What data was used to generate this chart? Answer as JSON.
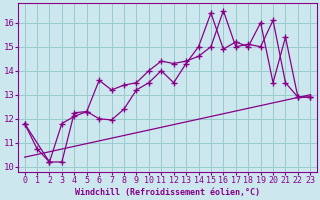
{
  "xlabel": "Windchill (Refroidissement éolien,°C)",
  "bg_color": "#cce8ee",
  "line_color": "#880088",
  "grid_color": "#99cccc",
  "xlim": [
    -0.5,
    23.5
  ],
  "ylim": [
    9.8,
    16.8
  ],
  "yticks": [
    10,
    11,
    12,
    13,
    14,
    15,
    16
  ],
  "xticks": [
    0,
    1,
    2,
    3,
    4,
    5,
    6,
    7,
    8,
    9,
    10,
    11,
    12,
    13,
    14,
    15,
    16,
    17,
    18,
    19,
    20,
    21,
    22,
    23
  ],
  "line1_x": [
    0,
    1,
    2,
    3,
    4,
    5,
    6,
    7,
    8,
    9,
    10,
    11,
    12,
    13,
    14,
    15,
    16,
    17,
    18,
    19,
    20,
    21,
    22,
    23
  ],
  "line1_y": [
    11.8,
    10.75,
    10.2,
    10.2,
    12.25,
    12.3,
    12.0,
    11.95,
    12.4,
    13.2,
    13.5,
    14.0,
    13.5,
    14.3,
    15.0,
    16.4,
    14.9,
    15.2,
    15.0,
    16.0,
    13.5,
    15.4,
    12.9,
    12.9
  ],
  "line2_x": [
    0,
    2,
    3,
    4,
    5,
    6,
    7,
    8,
    9,
    10,
    11,
    12,
    13,
    14,
    15,
    16,
    17,
    18,
    19,
    20,
    21,
    22,
    23
  ],
  "line2_y": [
    11.8,
    10.2,
    11.8,
    12.1,
    12.3,
    13.6,
    13.2,
    13.4,
    13.5,
    14.0,
    14.4,
    14.3,
    14.4,
    14.6,
    15.0,
    16.5,
    15.0,
    15.1,
    15.0,
    16.1,
    13.5,
    12.9,
    12.9
  ],
  "line3_x": [
    0,
    23
  ],
  "line3_y": [
    10.4,
    13.0
  ],
  "xlabel_fontsize": 6,
  "tick_fontsize": 6,
  "ytick_fontsize": 6.5
}
